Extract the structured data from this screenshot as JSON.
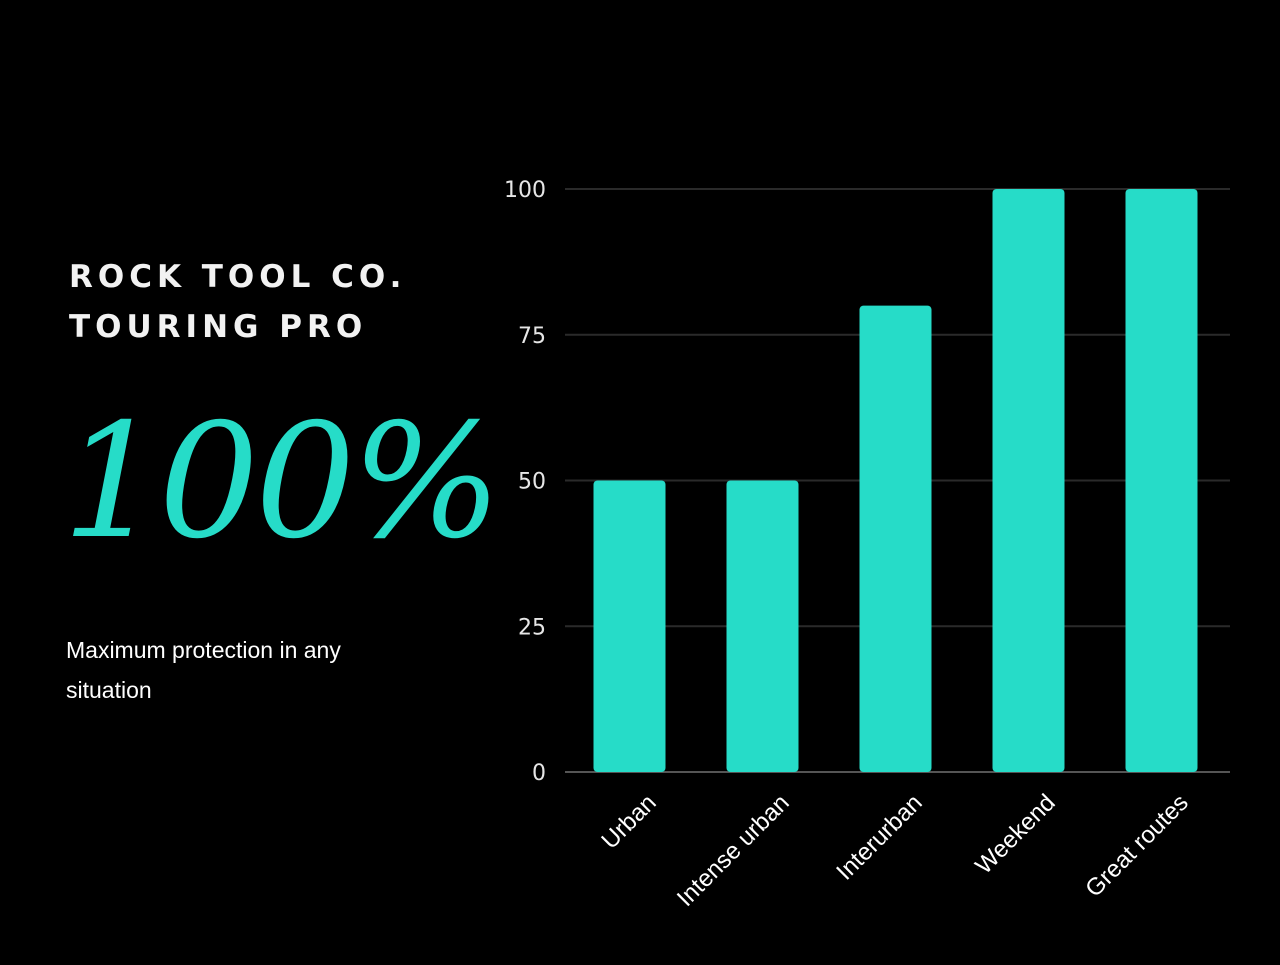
{
  "brand": {
    "line1": "ROCK TOOL CO.",
    "line2": "TOURING PRO"
  },
  "headline": "100%",
  "tagline": "Maximum protection in any situation",
  "colors": {
    "background": "#000000",
    "accent": "#26dcc8",
    "gridline": "#2a2a2a",
    "axis": "#555555"
  },
  "chart_data": {
    "type": "bar",
    "categories": [
      "Urban",
      "Intense urban",
      "Interurban",
      "Weekend",
      "Great routes"
    ],
    "values": [
      50,
      50,
      80,
      100,
      100
    ],
    "title": "",
    "xlabel": "",
    "ylabel": "",
    "ylim": [
      0,
      100
    ],
    "yticks": [
      0,
      25,
      50,
      75,
      100
    ],
    "grid": true,
    "legend": "none",
    "x_label_rotation": "-45deg"
  }
}
